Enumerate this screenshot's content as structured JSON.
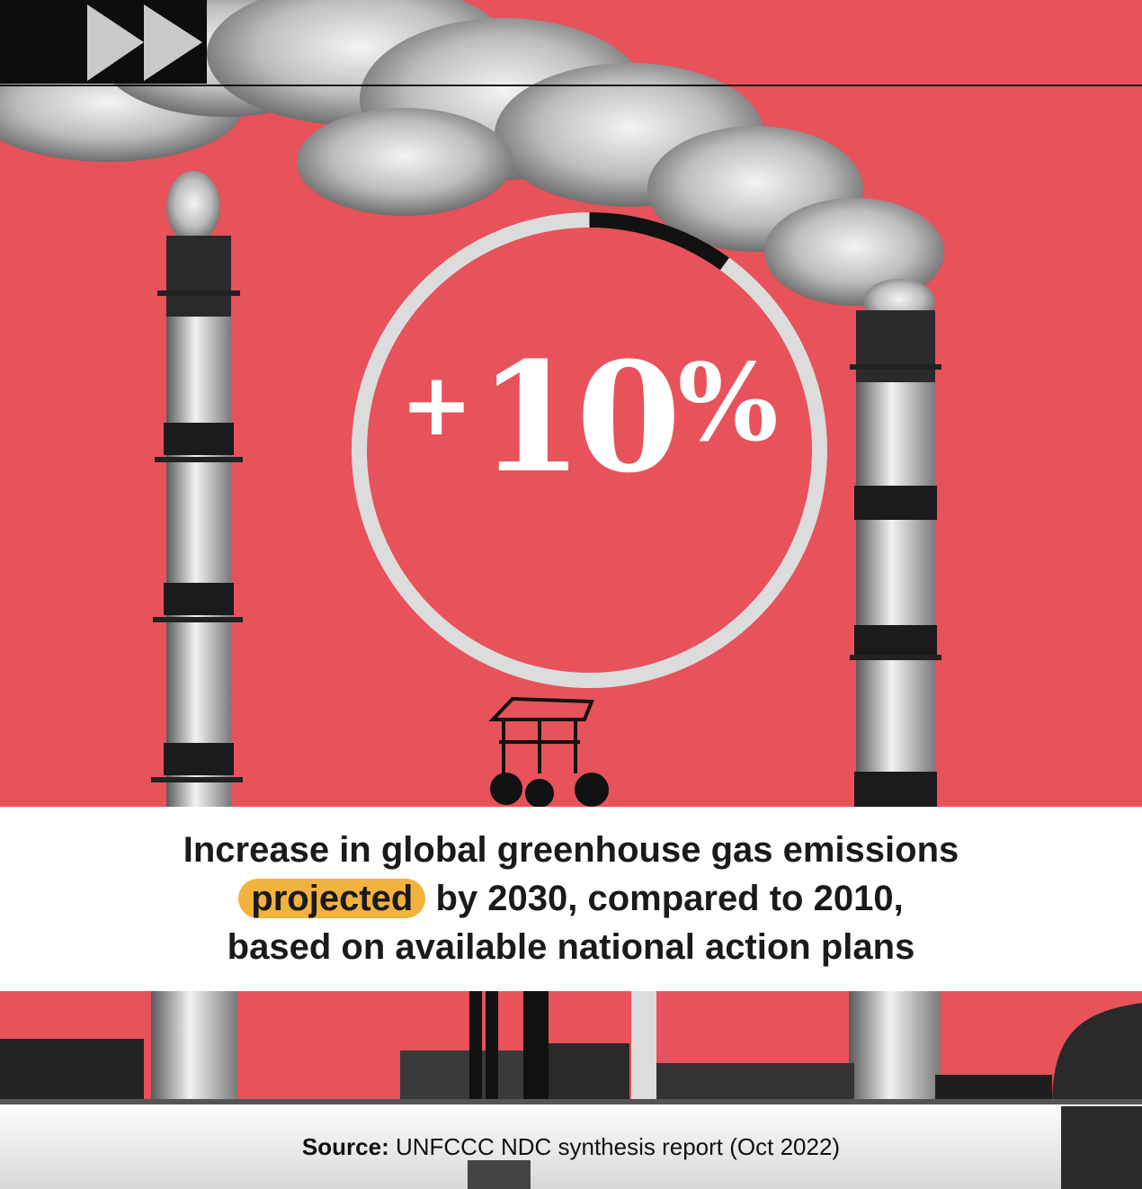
{
  "stat": {
    "sign": "+",
    "number": "10",
    "percent_sign": "%",
    "gauge_fraction": 0.1
  },
  "caption": {
    "line1": "Increase in global greenhouse gas emissions",
    "line2_highlight": "projected",
    "line2_rest": " by 2030, compared to 2010,",
    "line3": "based on available national action plans"
  },
  "source": {
    "label": "Source:",
    "text": " UNFCCC NDC synthesis report  (Oct 2022)"
  },
  "colors": {
    "background": "#e8525a",
    "highlight": "#f2b23e",
    "gauge_track": "#dcdcdc",
    "gauge_fill": "#111111"
  },
  "icons": {
    "top_left": "fast-forward-icon"
  }
}
